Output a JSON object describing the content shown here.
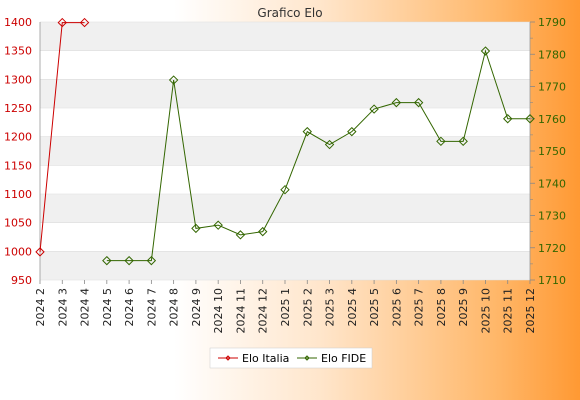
{
  "chart_data": {
    "type": "line",
    "title": "Grafico Elo",
    "categories": [
      "2024 2",
      "2024 3",
      "2024 4",
      "2024 5",
      "2024 6",
      "2024 7",
      "2024 8",
      "2024 9",
      "2024 10",
      "2024 11",
      "2024 12",
      "2025 1",
      "2025 2",
      "2025 3",
      "2025 4",
      "2025 5",
      "2025 6",
      "2025 7",
      "2025 8",
      "2025 9",
      "2025 10",
      "2025 11",
      "2025 12"
    ],
    "left_axis": {
      "ylim": [
        950,
        1400
      ],
      "ticks": [
        950,
        1000,
        1050,
        1100,
        1150,
        1200,
        1250,
        1300,
        1350,
        1400
      ],
      "color": "#cc0000"
    },
    "right_axis": {
      "ylim": [
        1710,
        1790
      ],
      "ticks": [
        1710,
        1720,
        1730,
        1740,
        1750,
        1760,
        1770,
        1780,
        1790
      ],
      "color": "#336600"
    },
    "series": [
      {
        "name": "Elo Italia",
        "axis": "left",
        "color": "#cc0000",
        "values": [
          999,
          1399,
          1399,
          null,
          null,
          null,
          null,
          null,
          null,
          null,
          null,
          null,
          null,
          null,
          null,
          null,
          null,
          null,
          null,
          null,
          null,
          null,
          null
        ]
      },
      {
        "name": "Elo FIDE",
        "axis": "right",
        "color": "#336600",
        "values": [
          null,
          null,
          null,
          1716,
          1716,
          1716,
          1772,
          1726,
          1727,
          1724,
          1725,
          1738,
          1756,
          1752,
          1756,
          1763,
          1765,
          1765,
          1753,
          1753,
          1781,
          1760,
          1760
        ]
      }
    ],
    "grid": true,
    "legend_position": "bottom-center"
  }
}
